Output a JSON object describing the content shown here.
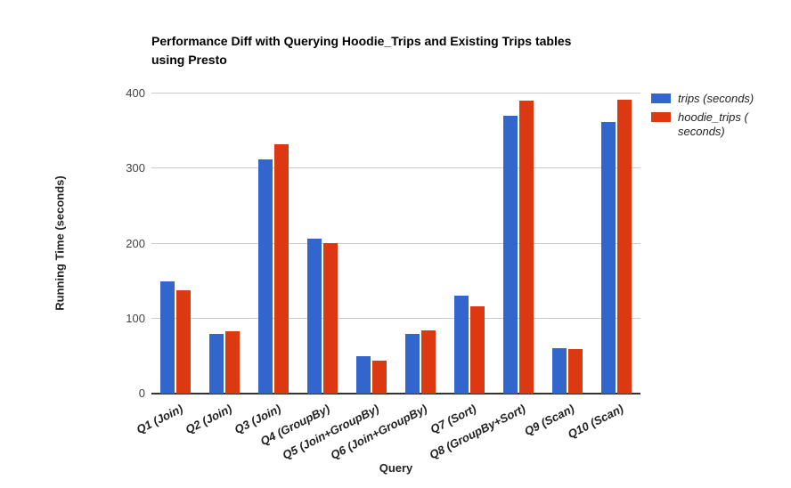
{
  "chart_data": {
    "type": "bar",
    "title_line1": "Performance Diff with Querying Hoodie_Trips and Existing Trips tables",
    "title_line2": "using Presto",
    "xlabel": "Query",
    "ylabel": "Running Time (seconds)",
    "categories": [
      "Q1 (Join)",
      "Q2 (Join)",
      "Q3 (Join)",
      "Q4 (GroupBy)",
      "Q5 (Join+GroupBy)",
      "Q6 (Join+GroupBy)",
      "Q7 (Sort)",
      "Q8 (GroupBy+Sort)",
      "Q9 (Scan)",
      "Q10 (Scan)"
    ],
    "series": [
      {
        "name": "trips (seconds)",
        "color": "#3366cc",
        "values": [
          150,
          80,
          312,
          207,
          50,
          80,
          130,
          370,
          60,
          362
        ]
      },
      {
        "name": "hoodie_trips ( seconds)",
        "color": "#dc3912",
        "values": [
          138,
          83,
          332,
          201,
          44,
          84,
          116,
          390,
          59,
          392
        ]
      }
    ],
    "ylim": [
      0,
      400
    ],
    "yticks": [
      0,
      100,
      200,
      300,
      400
    ],
    "grid": true,
    "legend_position": "right"
  },
  "colors": {
    "grid": "#cccccc",
    "baseline": "#333333",
    "tick_text": "#444444",
    "label_text": "#222222",
    "series_blue": "#3366cc",
    "series_red": "#dc3912"
  }
}
